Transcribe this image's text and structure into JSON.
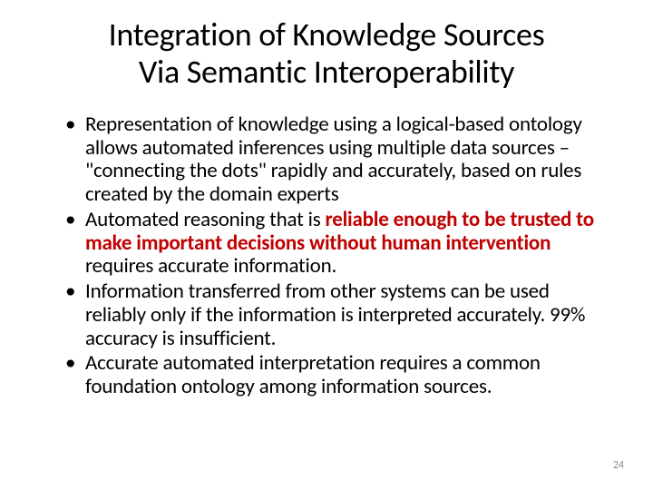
{
  "title_line1": "Integration of Knowledge Sources",
  "title_line2": "Via Semantic Interoperability",
  "bullets": [
    {
      "text": "Representation of knowledge using a logical-based ontology allows automated inferences using multiple data sources – \"connecting the dots\" rapidly and accurately, based on rules created by the domain experts"
    },
    {
      "prefix": "Automated reasoning that is ",
      "bold": "reliable enough to be trusted to make important decisions without human intervention",
      "suffix": " requires accurate information."
    },
    {
      "text": "Information transferred from other systems can be used reliably only if the information is interpreted accurately.  99% accuracy is insufficient."
    },
    {
      "text": "Accurate automated interpretation requires a common foundation ontology among information sources."
    }
  ],
  "page_number": "24",
  "colors": {
    "background": "#ffffff",
    "text": "#000000",
    "emphasis": "#c00000",
    "page_num": "#8b8b8b"
  },
  "typography": {
    "title_fontsize": 36,
    "body_fontsize": 23,
    "pagenum_fontsize": 12,
    "font_family": "Calibri"
  }
}
